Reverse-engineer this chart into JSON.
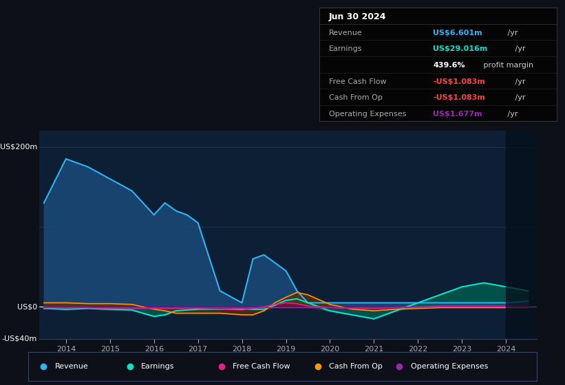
{
  "bg_color": "#0d1117",
  "plot_bg_color": "#0d1f35",
  "grid_color": "#1e3a5f",
  "ylim": [
    -40,
    220
  ],
  "series": {
    "revenue": {
      "color_line": "#29b6f6",
      "color_fill": "#1a4a7a",
      "label": "Revenue",
      "legend_color": "#29b6f6"
    },
    "earnings": {
      "color_line": "#00e5cc",
      "color_fill": "#005a4f",
      "label": "Earnings",
      "legend_color": "#00e5cc"
    },
    "fcf": {
      "color_line": "#e91e8c",
      "color_fill": "#7a0a3a",
      "label": "Free Cash Flow",
      "legend_color": "#e91e8c"
    },
    "cashfromop": {
      "color_line": "#ff9800",
      "color_fill": "#5a3000",
      "label": "Cash From Op",
      "legend_color": "#ff9800"
    },
    "opex": {
      "color_line": "#9c27b0",
      "color_fill": "#3a0050",
      "label": "Operating Expenses",
      "legend_color": "#9c27b0"
    }
  },
  "infobox": {
    "title": "Jun 30 2024",
    "bg_color": "#050505",
    "border_color": "#333333",
    "rows": [
      {
        "label": "Revenue",
        "value": "US$6.601m",
        "value_color": "#29b6f6",
        "suffix": " /yr"
      },
      {
        "label": "Earnings",
        "value": "US$29.016m",
        "value_color": "#00e5cc",
        "suffix": " /yr"
      },
      {
        "label": "",
        "value": "439.6%",
        "value_color": "#ffffff",
        "suffix": " profit margin"
      },
      {
        "label": "Free Cash Flow",
        "value": "-US$1.083m",
        "value_color": "#ff4444",
        "suffix": " /yr"
      },
      {
        "label": "Cash From Op",
        "value": "-US$1.083m",
        "value_color": "#ff4444",
        "suffix": " /yr"
      },
      {
        "label": "Operating Expenses",
        "value": "US$1.677m",
        "value_color": "#9c27b0",
        "suffix": " /yr"
      }
    ]
  },
  "years_x": [
    2013.5,
    2014.0,
    2014.5,
    2015.0,
    2015.5,
    2016.0,
    2016.25,
    2016.5,
    2016.75,
    2017.0,
    2017.5,
    2018.0,
    2018.25,
    2018.5,
    2018.75,
    2019.0,
    2019.25,
    2019.5,
    2020.0,
    2020.5,
    2021.0,
    2021.5,
    2022.0,
    2022.5,
    2023.0,
    2023.5,
    2024.0,
    2024.5
  ],
  "revenue": [
    130,
    185,
    175,
    160,
    145,
    115,
    130,
    120,
    115,
    105,
    20,
    5,
    60,
    65,
    55,
    45,
    20,
    5,
    5,
    5,
    5,
    5,
    5,
    5,
    5,
    5,
    5,
    7
  ],
  "earnings": [
    -2,
    -3,
    -2,
    -3,
    -4,
    -12,
    -10,
    -5,
    -4,
    -3,
    -3,
    -3,
    -3,
    -3,
    2,
    8,
    10,
    5,
    -5,
    -10,
    -15,
    -5,
    5,
    15,
    25,
    30,
    25,
    20
  ],
  "fcf": [
    -1,
    -1,
    -1,
    -2,
    -2,
    -2,
    -2,
    -2,
    -2,
    -2,
    -3,
    -4,
    -2,
    0,
    3,
    5,
    4,
    1,
    -1,
    -2,
    -2,
    -1,
    -1,
    0,
    0,
    0,
    0,
    0
  ],
  "cashfromop": [
    5,
    5,
    4,
    4,
    3,
    -3,
    -5,
    -8,
    -8,
    -8,
    -8,
    -10,
    -10,
    -5,
    5,
    12,
    18,
    15,
    3,
    -3,
    -5,
    -3,
    -2,
    -1,
    -1,
    -1,
    -1,
    -1
  ],
  "opex": [
    -1,
    -1,
    -1,
    -1,
    -1,
    -1,
    -1,
    -1,
    -1,
    -1,
    -1,
    -1,
    -1,
    -1,
    -1,
    -1,
    -1,
    -1,
    -1,
    -1,
    -1,
    -1,
    0,
    1,
    1,
    1,
    1,
    1
  ],
  "xticks": [
    2014,
    2015,
    2016,
    2017,
    2018,
    2019,
    2020,
    2021,
    2022,
    2023,
    2024
  ],
  "xlim": [
    2013.4,
    2024.7
  ]
}
